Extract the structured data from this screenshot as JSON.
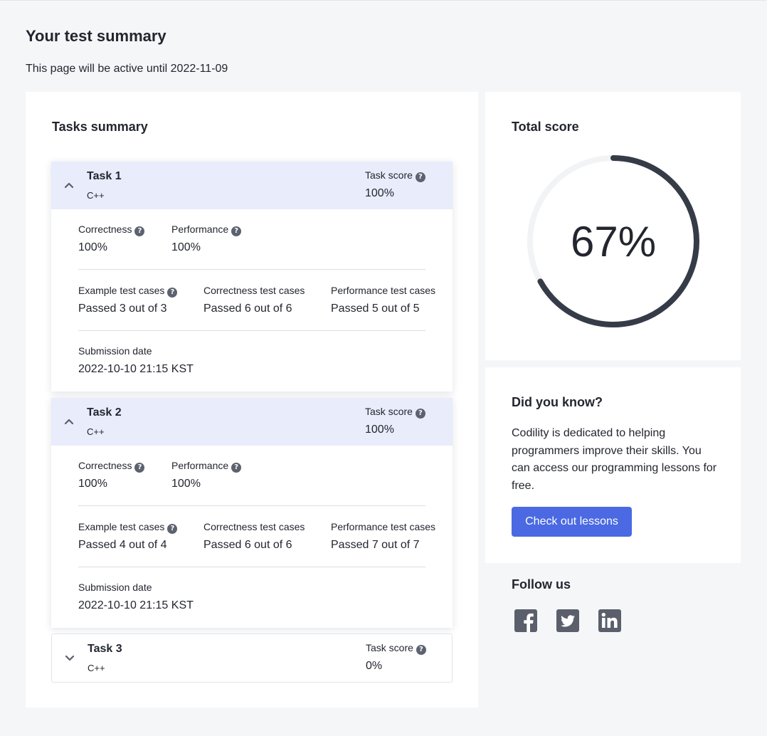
{
  "page": {
    "title": "Your test summary",
    "active_until": "This page will be active until 2022-11-09"
  },
  "tasks_summary": {
    "heading": "Tasks summary",
    "labels": {
      "task_score": "Task score",
      "correctness": "Correctness",
      "performance": "Performance",
      "example_cases": "Example test cases",
      "correctness_cases": "Correctness test cases",
      "performance_cases": "Performance test cases",
      "submission_date": "Submission date"
    },
    "tasks": [
      {
        "name": "Task 1",
        "language": "C++",
        "score": "100%",
        "expanded": true,
        "correctness": "100%",
        "performance": "100%",
        "example_cases": "Passed 3 out of 3",
        "correctness_cases": "Passed 6 out of 6",
        "performance_cases": "Passed 5 out of 5",
        "submission_date": "2022-10-10 21:15 KST"
      },
      {
        "name": "Task 2",
        "language": "C++",
        "score": "100%",
        "expanded": true,
        "correctness": "100%",
        "performance": "100%",
        "example_cases": "Passed 4 out of 4",
        "correctness_cases": "Passed 6 out of 6",
        "performance_cases": "Passed 7 out of 7",
        "submission_date": "2022-10-10 21:15 KST"
      },
      {
        "name": "Task 3",
        "language": "C++",
        "score": "0%",
        "expanded": false
      }
    ]
  },
  "total_score": {
    "heading": "Total score",
    "value": "67%",
    "fraction": 0.67,
    "ring_color": "#363b48",
    "track_color": "#f2f3f5"
  },
  "did_you_know": {
    "heading": "Did you know?",
    "text": "Codility is dedicated to helping programmers improve their skills. You can access our programming lessons for free.",
    "button_label": "Check out lessons",
    "button_color": "#4a69e2"
  },
  "follow_us": {
    "heading": "Follow us",
    "icons": [
      "facebook-icon",
      "twitter-icon",
      "linkedin-icon"
    ],
    "icon_color": "#5a5f6b"
  }
}
